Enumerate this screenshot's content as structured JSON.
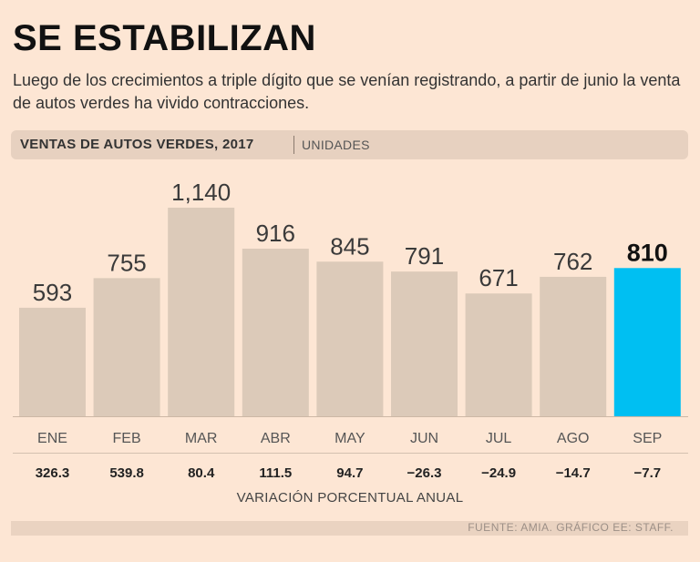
{
  "header": {
    "title": "SE ESTABILIZAN",
    "subtitle": "Luego de los crecimientos a triple dígito que se venían registrando, a partir de junio la venta de autos verdes ha vivido contracciones."
  },
  "band": {
    "title": "VENTAS DE AUTOS VERDES, 2017",
    "unit": "UNIDADES"
  },
  "variation_label": "VARIACIÓN PORCENTUAL ANUAL",
  "source": "FUENTE: AMIA.  GRÁFICO EE: STAFF.",
  "colors": {
    "bar": "#dccab9",
    "highlight": "#00bff2",
    "background": "#fde6d4"
  },
  "chart_data": {
    "type": "bar",
    "title": "VENTAS DE AUTOS VERDES, 2017",
    "ylabel": "UNIDADES",
    "categories": [
      "ENE",
      "FEB",
      "MAR",
      "ABR",
      "MAY",
      "JUN",
      "JUL",
      "AGO",
      "SEP"
    ],
    "values": [
      593,
      755,
      1140,
      916,
      845,
      791,
      671,
      762,
      810
    ],
    "value_labels": [
      "593",
      "755",
      "1,140",
      "916",
      "845",
      "791",
      "671",
      "762",
      "810"
    ],
    "highlight_index": 8,
    "variation": [
      "326.3",
      "539.8",
      "80.4",
      "111.5",
      "94.7",
      "−26.3",
      "−24.9",
      "−14.7",
      "−7.7"
    ],
    "ylim": [
      0,
      1140
    ],
    "grid": false,
    "legend": "none"
  }
}
